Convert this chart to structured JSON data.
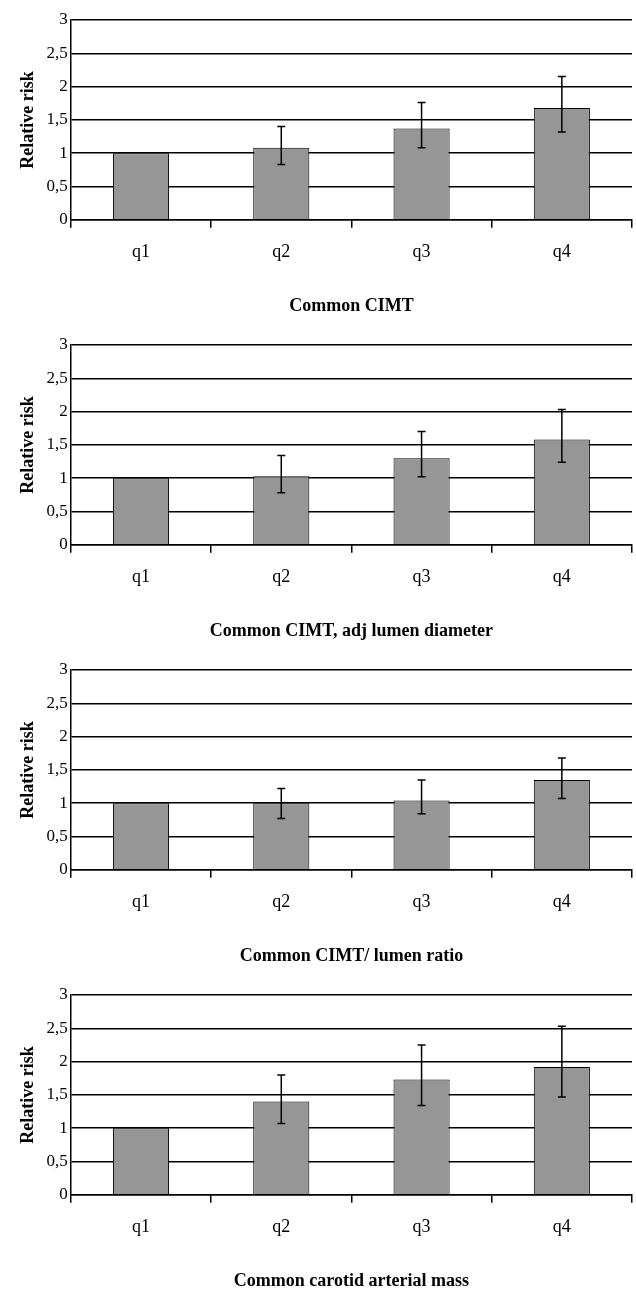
{
  "chart_data": [
    {
      "type": "bar",
      "xlabel": "Common CIMT",
      "ylabel": "Relative risk",
      "categories": [
        "q1",
        "q2",
        "q3",
        "q4"
      ],
      "values": [
        1,
        1.08,
        1.37,
        1.68
      ],
      "errors": [
        null,
        [
          0.83,
          1.4
        ],
        [
          1.08,
          1.76
        ],
        [
          1.32,
          2.15
        ]
      ],
      "color": "#969696",
      "ylim": [
        0,
        3
      ],
      "yticks": [
        {
          "value": 0,
          "label": "0"
        },
        {
          "value": 0.5,
          "label": "0,5"
        },
        {
          "value": 1,
          "label": "1"
        },
        {
          "value": 1.5,
          "label": "1,5"
        },
        {
          "value": 2,
          "label": "2"
        },
        {
          "value": 2.5,
          "label": "2,5"
        },
        {
          "value": 3,
          "label": "3"
        }
      ],
      "grid": "y",
      "legend": false
    },
    {
      "type": "bar",
      "xlabel": "Common CIMT, adj lumen diameter",
      "ylabel": "Relative risk",
      "categories": [
        "q1",
        "q2",
        "q3",
        "q4"
      ],
      "values": [
        1,
        1.03,
        1.3,
        1.58
      ],
      "errors": [
        null,
        [
          0.78,
          1.34
        ],
        [
          1.02,
          1.7
        ],
        [
          1.24,
          2.03
        ]
      ],
      "color": "#969696",
      "ylim": [
        0,
        3
      ],
      "yticks": [
        {
          "value": 0,
          "label": "0"
        },
        {
          "value": 0.5,
          "label": "0,5"
        },
        {
          "value": 1,
          "label": "1"
        },
        {
          "value": 1.5,
          "label": "1,5"
        },
        {
          "value": 2,
          "label": "2"
        },
        {
          "value": 2.5,
          "label": "2,5"
        },
        {
          "value": 3,
          "label": "3"
        }
      ],
      "grid": "y",
      "legend": false
    },
    {
      "type": "bar",
      "xlabel": "Common CIMT/ lumen ratio",
      "ylabel": "Relative risk",
      "categories": [
        "q1",
        "q2",
        "q3",
        "q4"
      ],
      "values": [
        1,
        1.0,
        1.04,
        1.35
      ],
      "errors": [
        null,
        [
          0.77,
          1.22
        ],
        [
          0.84,
          1.35
        ],
        [
          1.07,
          1.68
        ]
      ],
      "color": "#969696",
      "ylim": [
        0,
        3
      ],
      "yticks": [
        {
          "value": 0,
          "label": "0"
        },
        {
          "value": 0.5,
          "label": "0,5"
        },
        {
          "value": 1,
          "label": "1"
        },
        {
          "value": 1.5,
          "label": "1,5"
        },
        {
          "value": 2,
          "label": "2"
        },
        {
          "value": 2.5,
          "label": "2,5"
        },
        {
          "value": 3,
          "label": "3"
        }
      ],
      "grid": "y",
      "legend": false
    },
    {
      "type": "bar",
      "xlabel": "Common carotid arterial mass",
      "ylabel": "Relative risk",
      "categories": [
        "q1",
        "q2",
        "q3",
        "q4"
      ],
      "values": [
        1,
        1.4,
        1.73,
        1.92
      ],
      "errors": [
        null,
        [
          1.07,
          1.8
        ],
        [
          1.34,
          2.25
        ],
        [
          1.47,
          2.53
        ]
      ],
      "color": "#969696",
      "ylim": [
        0,
        3
      ],
      "yticks": [
        {
          "value": 0,
          "label": "0"
        },
        {
          "value": 0.5,
          "label": "0,5"
        },
        {
          "value": 1,
          "label": "1"
        },
        {
          "value": 1.5,
          "label": "1,5"
        },
        {
          "value": 2,
          "label": "2"
        },
        {
          "value": 2.5,
          "label": "2,5"
        },
        {
          "value": 3,
          "label": "3"
        }
      ],
      "grid": "y",
      "legend": false
    }
  ]
}
